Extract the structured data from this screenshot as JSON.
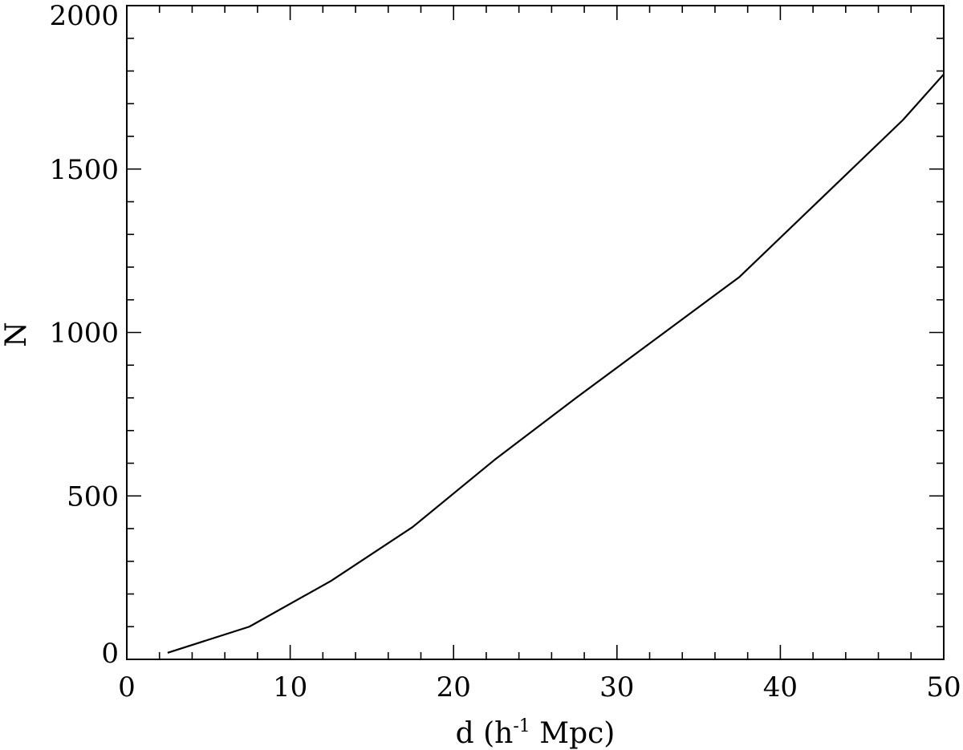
{
  "chart_data": {
    "type": "line",
    "title": "",
    "xlabel": {
      "prefix": "d (h",
      "superscript": "-1",
      "suffix": " Mpc)"
    },
    "ylabel": "N",
    "xlim": [
      0,
      50
    ],
    "ylim": [
      0,
      2000
    ],
    "x_ticks": [
      0,
      10,
      20,
      30,
      40,
      50
    ],
    "x_tick_labels": [
      "0",
      "10",
      "20",
      "30",
      "40",
      "50"
    ],
    "y_ticks": [
      0,
      500,
      1000,
      1500,
      2000
    ],
    "y_tick_labels": [
      "0",
      "500",
      "1000",
      "1500",
      "2000"
    ],
    "x_minor_step": 2,
    "y_minor_step": 100,
    "grid": false,
    "legend": "none",
    "line_color": "#000000",
    "series": [
      {
        "x": [
          2.5,
          7.5,
          12.5,
          17.5,
          22.5,
          27.5,
          32.5,
          37.5,
          42.5,
          47.5,
          50
        ],
        "values": [
          20,
          100,
          240,
          405,
          610,
          800,
          985,
          1170,
          1410,
          1650,
          1790
        ]
      }
    ]
  }
}
